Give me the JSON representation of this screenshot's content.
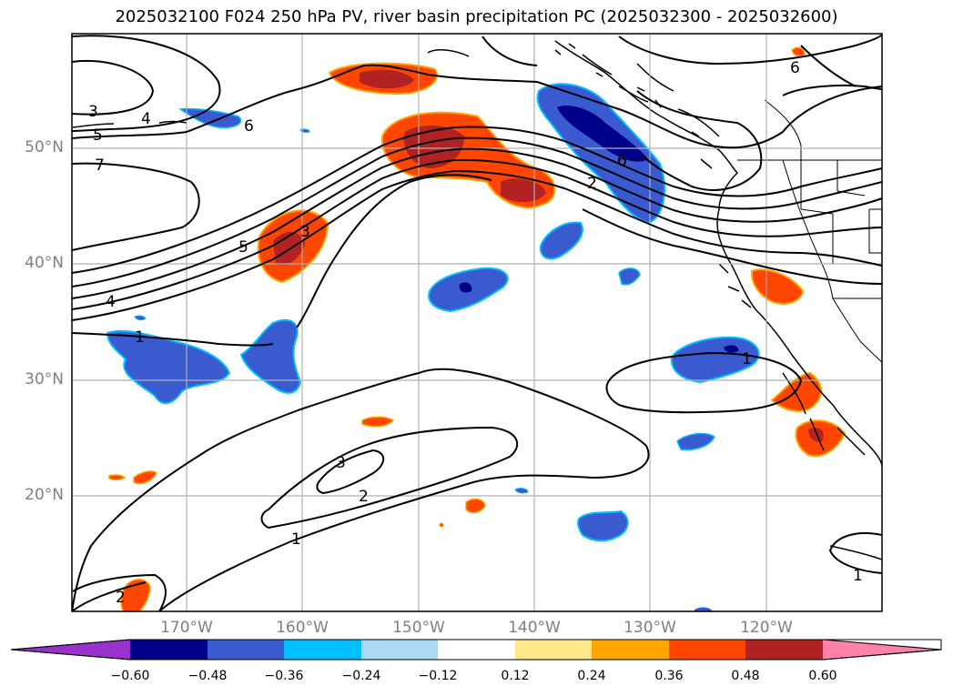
{
  "title": "2025032100 F024 250 hPa PV, river basin precipitation PC (2025032300 - 2025032600)",
  "lat_labels": [
    "50°N",
    "40°N",
    "30°N",
    "20°N"
  ],
  "lon_labels": [
    "170°W",
    "160°W",
    "150°W",
    "140°W",
    "130°W",
    "120°W"
  ],
  "colorbar": {
    "ticks": [
      "−0.60",
      "−0.48",
      "−0.36",
      "−0.24",
      "−0.12",
      "0.12",
      "0.24",
      "0.36",
      "0.48",
      "0.60"
    ],
    "colors": [
      "#9932cc",
      "#00008b",
      "#3a5bd0",
      "#00bfff",
      "#add8f5",
      "#ffffff",
      "#ffe88a",
      "#ffa500",
      "#ff4500",
      "#b22222",
      "#ff82a9"
    ]
  },
  "contour_labels": [
    "3",
    "4",
    "5",
    "6",
    "7",
    "6",
    "5",
    "3",
    "4",
    "1",
    "2",
    "6",
    "1",
    "3",
    "2",
    "1",
    "2",
    "1"
  ],
  "colors": {
    "frame": "#000000",
    "grid": "#b0b0b0",
    "label": "#808080"
  }
}
